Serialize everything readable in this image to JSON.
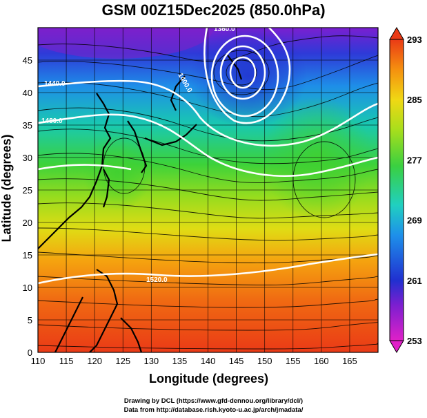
{
  "title": "GSM 00Z15Dec2025 (850.0hPa)",
  "xlabel": "Longitude (degrees)",
  "ylabel": "Latitude  (degrees)",
  "credit_line1": "Drawing by DCL (https://www.gfd-dennou.org/library/dcl/)",
  "credit_line2": "Data from http://database.rish.kyoto-u.ac.jp/arch/jmadata/",
  "chart_data": {
    "type": "heatmap",
    "field": "temperature (shaded) with geopotential height contours and wind streamlines",
    "xlim": [
      110,
      170
    ],
    "ylim": [
      0,
      50
    ],
    "x_ticks": [
      110,
      115,
      120,
      125,
      130,
      135,
      140,
      145,
      150,
      155,
      160,
      165
    ],
    "y_ticks": [
      0,
      5,
      10,
      15,
      20,
      25,
      30,
      35,
      40,
      45
    ],
    "colorbar_ticks": [
      253,
      261,
      269,
      277,
      285,
      293
    ],
    "colorbar_range": [
      253,
      293
    ],
    "contour_labels": [
      {
        "text": "1360.0",
        "lon": 145,
        "lat": 48
      },
      {
        "text": "1400.0",
        "lon": 139,
        "lat": 42
      },
      {
        "text": "1440.0",
        "lon": 113,
        "lat": 43
      },
      {
        "text": "1480.0",
        "lon": 112,
        "lat": 37
      },
      {
        "text": "1520.0",
        "lon": 134,
        "lat": 11
      }
    ],
    "low_center": {
      "lon": 145,
      "lat": 45
    },
    "grid": true
  }
}
